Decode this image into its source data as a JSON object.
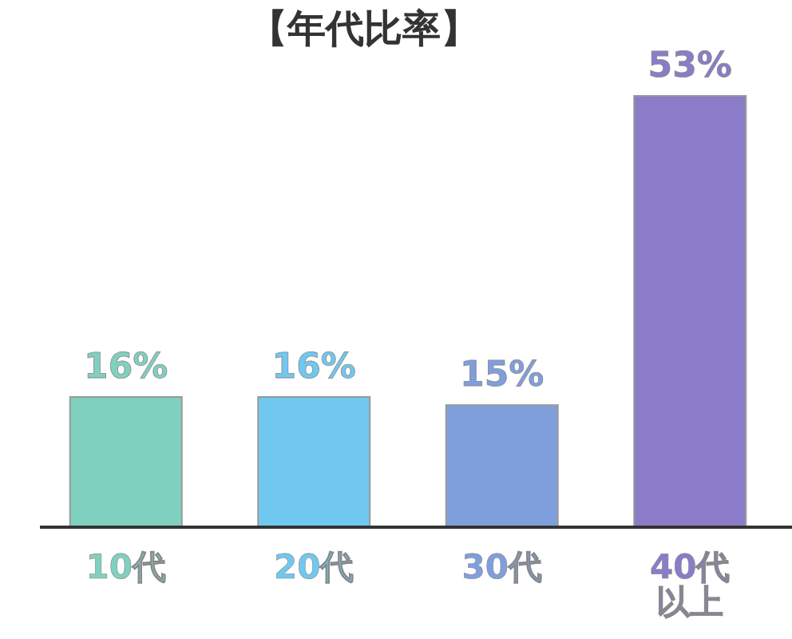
{
  "chart_data": {
    "type": "bar",
    "title": "【年代比率】",
    "categories": [
      "10代",
      "20代",
      "30代",
      "40代以上"
    ],
    "values": [
      16,
      16,
      15,
      53
    ],
    "colors": [
      "#80d0c0",
      "#70c8f0",
      "#7f9fdc",
      "#8a7cc8"
    ],
    "value_labels": [
      "16%",
      "16%",
      "15%",
      "53%"
    ]
  }
}
